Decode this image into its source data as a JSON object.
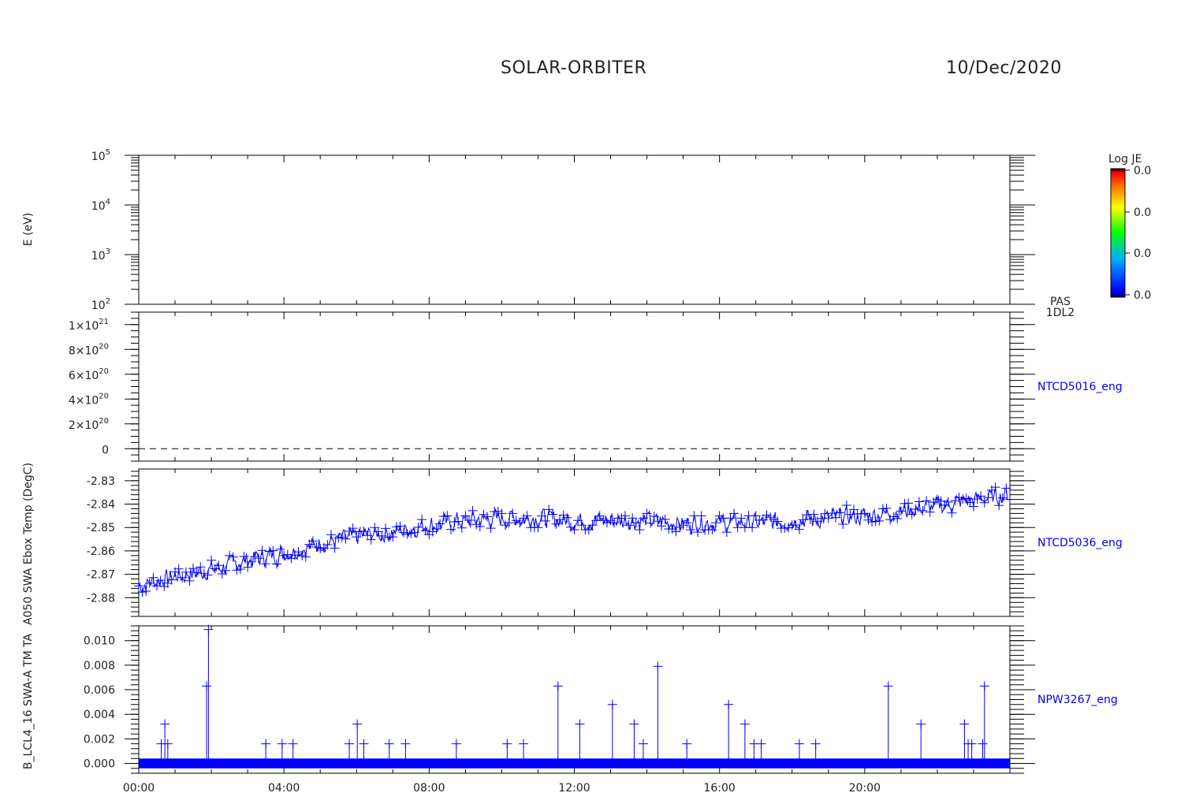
{
  "header": {
    "mission": "SOLAR-ORBITER",
    "date": "10/Dec/2020"
  },
  "colors": {
    "trace": "#0000ff",
    "axis": "#000000"
  },
  "colorbar": {
    "label": "Log JE",
    "ticks": [
      "0.0",
      "0.0",
      "0.0",
      "0.0"
    ]
  },
  "panels": [
    {
      "id": "pas-spectrogram",
      "ylabel": "E (eV)",
      "right_label": "PAS\n1DL2"
    },
    {
      "id": "ntcd5016",
      "ylabel": "",
      "right_label": "NTCD5016_eng"
    },
    {
      "id": "ntcd5036",
      "ylabel": "A050 SWA Ebox Temp (DegC)",
      "right_label": "NTCD5036_eng"
    },
    {
      "id": "npw3267",
      "ylabel": "B_LCL4_16 SWA-A TM TA",
      "right_label": "NPW3267_eng"
    }
  ],
  "xaxis": {
    "ticks": [
      "00:00",
      "04:00",
      "08:00",
      "12:00",
      "16:00",
      "20:00"
    ]
  },
  "chart_data": [
    {
      "type": "heatmap",
      "panel": "pas-spectrogram",
      "ylabel": "E (eV)",
      "yscale": "log",
      "ylim": [
        100,
        100000
      ],
      "yticks": [
        {
          "base": "10",
          "exp": "2",
          "value": 100
        },
        {
          "base": "10",
          "exp": "3",
          "value": 1000
        },
        {
          "base": "10",
          "exp": "4",
          "value": 10000
        },
        {
          "base": "10",
          "exp": "5",
          "value": 100000
        }
      ],
      "values": []
    },
    {
      "type": "line",
      "panel": "ntcd5016",
      "series_name": "NTCD5016_eng",
      "ylim": [
        -1e+20,
        1.1e+21
      ],
      "yticks": [
        {
          "base": "1×10",
          "exp": "21",
          "value": 1e+21
        },
        {
          "base": "8×10",
          "exp": "20",
          "value": 8e+20
        },
        {
          "base": "6×10",
          "exp": "20",
          "value": 6e+20
        },
        {
          "base": "4×10",
          "exp": "20",
          "value": 4e+20
        },
        {
          "base": "2×10",
          "exp": "20",
          "value": 2e+20
        },
        {
          "base": "0",
          "exp": "",
          "value": 0
        }
      ],
      "x_hours": [
        0,
        24
      ],
      "values": [
        0,
        0
      ],
      "line_style": "dashed"
    },
    {
      "type": "line",
      "panel": "ntcd5036",
      "series_name": "NTCD5036_eng",
      "ylabel": "A050 SWA Ebox Temp (DegC)",
      "ylim": [
        -2.888,
        -2.825
      ],
      "yticks": [
        {
          "label": "-2.83",
          "value": -2.83
        },
        {
          "label": "-2.84",
          "value": -2.84
        },
        {
          "label": "-2.85",
          "value": -2.85
        },
        {
          "label": "-2.86",
          "value": -2.86
        },
        {
          "label": "-2.87",
          "value": -2.87
        },
        {
          "label": "-2.88",
          "value": -2.88
        }
      ],
      "trend_hours": [
        0,
        1,
        2,
        3,
        4,
        5,
        6,
        7,
        8,
        9,
        10,
        11,
        12,
        13,
        14,
        15,
        16,
        17,
        18,
        19,
        20,
        21,
        22,
        23,
        24
      ],
      "trend_values": [
        -2.875,
        -2.871,
        -2.868,
        -2.864,
        -2.861,
        -2.857,
        -2.854,
        -2.852,
        -2.849,
        -2.847,
        -2.846,
        -2.846,
        -2.847,
        -2.847,
        -2.847,
        -2.848,
        -2.848,
        -2.848,
        -2.847,
        -2.846,
        -2.845,
        -2.843,
        -2.841,
        -2.838,
        -2.836
      ],
      "noise_amplitude": 0.005,
      "step_minutes": 2
    },
    {
      "type": "line",
      "panel": "npw3267",
      "series_name": "NPW3267_eng",
      "ylabel": "B_LCL4_16 SWA-A TM TA",
      "ylim": [
        -0.0008,
        0.0112
      ],
      "yticks": [
        {
          "label": "0.010",
          "value": 0.01
        },
        {
          "label": "0.008",
          "value": 0.008
        },
        {
          "label": "0.006",
          "value": 0.006
        },
        {
          "label": "0.004",
          "value": 0.004
        },
        {
          "label": "0.002",
          "value": 0.002
        },
        {
          "label": "0.000",
          "value": 0.0
        }
      ],
      "baseline_range": [
        -0.0004,
        0.0004
      ],
      "spikes": [
        {
          "x": 0.62,
          "y": 0.0016
        },
        {
          "x": 0.72,
          "y": 0.0032
        },
        {
          "x": 0.8,
          "y": 0.0016
        },
        {
          "x": 1.87,
          "y": 0.0063
        },
        {
          "x": 1.92,
          "y": 0.0109
        },
        {
          "x": 3.5,
          "y": 0.0016
        },
        {
          "x": 3.95,
          "y": 0.0016
        },
        {
          "x": 4.25,
          "y": 0.0016
        },
        {
          "x": 5.8,
          "y": 0.0016
        },
        {
          "x": 6.02,
          "y": 0.0032
        },
        {
          "x": 6.2,
          "y": 0.0016
        },
        {
          "x": 6.9,
          "y": 0.0016
        },
        {
          "x": 7.35,
          "y": 0.0016
        },
        {
          "x": 8.75,
          "y": 0.0016
        },
        {
          "x": 10.15,
          "y": 0.0016
        },
        {
          "x": 10.6,
          "y": 0.0016
        },
        {
          "x": 11.55,
          "y": 0.0063
        },
        {
          "x": 12.15,
          "y": 0.0032
        },
        {
          "x": 13.05,
          "y": 0.0048
        },
        {
          "x": 13.65,
          "y": 0.0032
        },
        {
          "x": 13.9,
          "y": 0.0016
        },
        {
          "x": 14.3,
          "y": 0.0079
        },
        {
          "x": 15.1,
          "y": 0.0016
        },
        {
          "x": 16.25,
          "y": 0.0048
        },
        {
          "x": 16.7,
          "y": 0.0032
        },
        {
          "x": 16.95,
          "y": 0.0016
        },
        {
          "x": 17.15,
          "y": 0.0016
        },
        {
          "x": 18.2,
          "y": 0.0016
        },
        {
          "x": 18.65,
          "y": 0.0016
        },
        {
          "x": 20.65,
          "y": 0.0063
        },
        {
          "x": 21.55,
          "y": 0.0032
        },
        {
          "x": 22.75,
          "y": 0.0032
        },
        {
          "x": 22.85,
          "y": 0.0016
        },
        {
          "x": 22.95,
          "y": 0.0016
        },
        {
          "x": 23.25,
          "y": 0.0016
        },
        {
          "x": 23.3,
          "y": 0.0063
        }
      ]
    }
  ]
}
